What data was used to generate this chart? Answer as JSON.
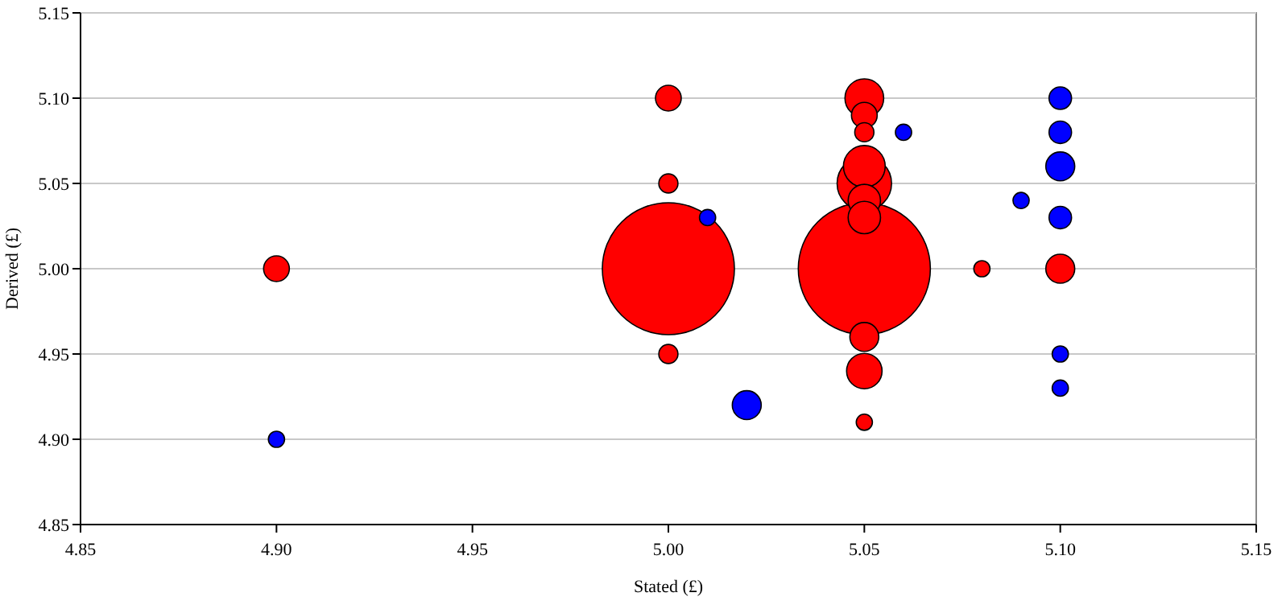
{
  "chart_data": {
    "type": "bubble",
    "xlabel": "Stated (£)",
    "ylabel": "Derived (£)",
    "xlim": [
      4.85,
      5.15
    ],
    "xticks": [
      {
        "value": 4.85,
        "label": "4.85"
      },
      {
        "value": 4.9,
        "label": "4.90"
      },
      {
        "value": 4.95,
        "label": "4.95"
      },
      {
        "value": 5.0,
        "label": "5.00"
      },
      {
        "value": 5.05,
        "label": "5.05"
      },
      {
        "value": 5.1,
        "label": "5.10"
      },
      {
        "value": 5.15,
        "label": "5.15"
      }
    ],
    "ylim": [
      4.85,
      5.15
    ],
    "yticks": [
      {
        "value": 4.85,
        "label": "4.85"
      },
      {
        "value": 4.9,
        "label": "4.90"
      },
      {
        "value": 4.95,
        "label": "4.95"
      },
      {
        "value": 5.0,
        "label": "5.00"
      },
      {
        "value": 5.05,
        "label": "5.05"
      },
      {
        "value": 5.1,
        "label": "5.10"
      },
      {
        "value": 5.15,
        "label": "5.15"
      }
    ],
    "grid": "y",
    "series": [
      {
        "color": "#ff0000",
        "x": [
          4.9,
          5.0,
          5.0,
          5.0,
          5.0,
          5.05,
          5.05,
          5.05,
          5.05,
          5.05,
          5.05,
          5.05,
          5.05,
          5.05,
          5.05,
          5.05,
          5.08,
          5.1
        ],
        "values": [
          5.0,
          5.1,
          5.05,
          5.0,
          4.95,
          5.1,
          5.09,
          5.08,
          5.06,
          5.05,
          5.04,
          5.03,
          5.0,
          4.96,
          4.94,
          4.91,
          5.0,
          5.0
        ],
        "sizes": [
          0.038,
          0.038,
          0.021,
          1,
          0.021,
          0.086,
          0.038,
          0.021,
          0.1,
          0.17,
          0.06,
          0.06,
          1,
          0.048,
          0.072,
          0.015,
          0.015,
          0.048
        ]
      },
      {
        "color": "#0000ff",
        "x": [
          4.9,
          5.01,
          5.02,
          5.06,
          5.09,
          5.1,
          5.1,
          5.1,
          5.1,
          5.1,
          5.1
        ],
        "values": [
          4.9,
          5.03,
          4.92,
          5.08,
          5.04,
          5.1,
          5.08,
          5.06,
          5.03,
          4.95,
          4.93
        ],
        "sizes": [
          0.015,
          0.015,
          0.048,
          0.015,
          0.015,
          0.029,
          0.029,
          0.048,
          0.029,
          0.015,
          0.015
        ]
      }
    ]
  }
}
